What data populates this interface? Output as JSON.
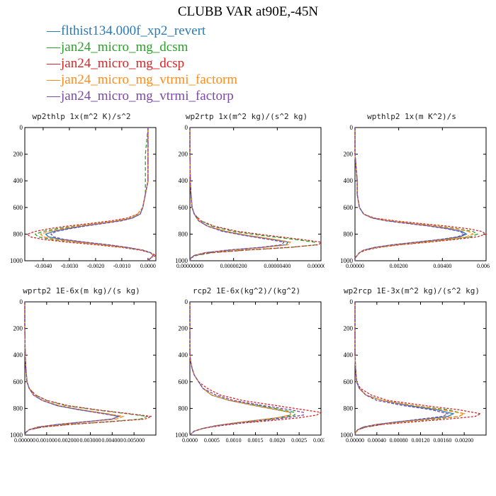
{
  "title": "CLUBB VAR at90E,-45N",
  "legend": [
    {
      "label": "flthist134.000f_xp2_revert",
      "color": "#2a7ab5"
    },
    {
      "label": "jan24_micro_mg_dcsm",
      "color": "#2ca02c"
    },
    {
      "label": "jan24_micro_mg_dcsp",
      "color": "#d62728"
    },
    {
      "label": "jan24_micro_mg_vtrmi_factorm",
      "color": "#ff8c1a"
    },
    {
      "label": "jan24_micro_mg_vtrmi_factorp",
      "color": "#7b4aa6"
    }
  ],
  "chart_data": [
    {
      "type": "line",
      "title": "wp2thlp   1x(m^2 K)/s^2",
      "xlim": [
        -0.0047,
        0.0003
      ],
      "xticks": [
        -0.004,
        -0.003,
        -0.002,
        -0.001,
        0.0
      ],
      "xtick_labels": [
        "-0.0040",
        "-0.0030",
        "-0.0020",
        "-0.0010",
        "0.0000"
      ],
      "ylim": [
        1000,
        0
      ],
      "yticks": [
        0,
        200,
        400,
        600,
        800,
        1000
      ],
      "y": [
        0,
        200,
        400,
        500,
        600,
        650,
        680,
        700,
        720,
        740,
        760,
        780,
        800,
        820,
        840,
        860,
        880,
        900,
        920,
        940,
        960,
        980,
        1000
      ],
      "series": [
        {
          "values": [
            0.0,
            0.0,
            0.0,
            -0.0001,
            -0.0002,
            -0.0003,
            -0.0006,
            -0.0011,
            -0.0018,
            -0.0025,
            -0.0031,
            -0.0036,
            -0.0039,
            -0.0038,
            -0.0033,
            -0.0025,
            -0.0016,
            -0.0008,
            -0.0002,
            0.0001,
            0.0002,
            0.0001,
            0.0
          ]
        },
        {
          "values": [
            0.0,
            -0.0001,
            -0.0001,
            -0.0001,
            -0.0002,
            -0.0004,
            -0.0007,
            -0.0012,
            -0.002,
            -0.0028,
            -0.0035,
            -0.004,
            -0.0043,
            -0.0042,
            -0.0037,
            -0.0028,
            -0.0018,
            -0.0009,
            -0.0002,
            0.0001,
            0.0002,
            0.0001,
            0.0
          ]
        },
        {
          "values": [
            0.0,
            0.0,
            0.0,
            -0.0001,
            -0.0002,
            -0.0004,
            -0.0008,
            -0.0014,
            -0.0022,
            -0.0031,
            -0.0038,
            -0.0043,
            -0.0046,
            -0.0045,
            -0.004,
            -0.0031,
            -0.002,
            -0.001,
            -0.0003,
            0.0001,
            0.0003,
            0.0001,
            0.0
          ]
        },
        {
          "values": [
            0.0,
            0.0,
            0.0,
            -0.0001,
            -0.0002,
            -0.0004,
            -0.0007,
            -0.0012,
            -0.0019,
            -0.0027,
            -0.0033,
            -0.0038,
            -0.0041,
            -0.004,
            -0.0035,
            -0.0027,
            -0.0017,
            -0.0009,
            -0.0002,
            0.0001,
            0.0002,
            0.0001,
            0.0
          ]
        },
        {
          "values": [
            0.0,
            0.0,
            0.0,
            -0.0001,
            -0.0002,
            -0.0003,
            -0.0006,
            -0.001,
            -0.0017,
            -0.0024,
            -0.003,
            -0.0035,
            -0.0037,
            -0.0036,
            -0.0032,
            -0.0024,
            -0.0015,
            -0.0008,
            -0.0002,
            0.0001,
            0.0002,
            0.0001,
            0.0
          ]
        }
      ]
    },
    {
      "type": "line",
      "title": "wp2rtp   1x(m^2 kg)/(s^2 kg)",
      "xlim": [
        0,
        6e-06
      ],
      "xticks": [
        0,
        2e-06,
        4e-06,
        6e-06
      ],
      "xtick_labels": [
        "0.00000000",
        "0.00000200",
        "0.00000400",
        "0.00000600"
      ],
      "ylim": [
        1000,
        0
      ],
      "yticks": [
        0,
        200,
        400,
        600,
        800,
        1000
      ],
      "y": [
        0,
        200,
        400,
        500,
        600,
        650,
        700,
        740,
        780,
        810,
        840,
        860,
        880,
        900,
        920,
        940,
        960,
        980,
        1000
      ],
      "series": [
        {
          "values": [
            0,
            0,
            2e-08,
            5e-08,
            1e-07,
            2e-07,
            4e-07,
            8e-07,
            1.6e-06,
            2.6e-06,
            3.8e-06,
            4.5e-06,
            4.4e-06,
            3.3e-06,
            1.8e-06,
            7e-07,
            2e-07,
            5e-08,
            0
          ]
        },
        {
          "values": [
            0,
            0,
            2e-08,
            5e-08,
            1e-07,
            2e-07,
            5e-07,
            1e-06,
            2e-06,
            3.3e-06,
            4.8e-06,
            5.7e-06,
            5.8e-06,
            4.6e-06,
            2.6e-06,
            1e-06,
            3e-07,
            5e-08,
            0
          ]
        },
        {
          "values": [
            0,
            0,
            2e-08,
            5e-08,
            1e-07,
            2e-07,
            5e-07,
            1.1e-06,
            2.2e-06,
            3.6e-06,
            5.1e-06,
            6e-06,
            5.9e-06,
            4.5e-06,
            2.5e-06,
            9e-07,
            2e-07,
            5e-08,
            0
          ]
        },
        {
          "values": [
            0,
            0,
            2e-08,
            5e-08,
            1e-07,
            2e-07,
            4e-07,
            8e-07,
            1.7e-06,
            2.7e-06,
            3.9e-06,
            4.6e-06,
            4.5e-06,
            3.4e-06,
            1.9e-06,
            7e-07,
            2e-07,
            5e-08,
            0
          ]
        },
        {
          "values": [
            0,
            0,
            2e-08,
            5e-08,
            1e-07,
            2e-07,
            4e-07,
            8e-07,
            1.5e-06,
            2.5e-06,
            3.6e-06,
            4.3e-06,
            4.2e-06,
            3.2e-06,
            1.7e-06,
            7e-07,
            2e-07,
            5e-08,
            0
          ]
        }
      ]
    },
    {
      "type": "line",
      "title": "wpthlp2   1x(m K^2)/s",
      "xlim": [
        0,
        0.006
      ],
      "xticks": [
        0,
        0.002,
        0.004,
        0.006
      ],
      "xtick_labels": [
        "0.00000",
        "0.00200",
        "0.00400",
        "0.00600"
      ],
      "ylim": [
        1000,
        0
      ],
      "yticks": [
        0,
        200,
        400,
        600,
        800,
        1000
      ],
      "y": [
        0,
        200,
        400,
        500,
        600,
        650,
        680,
        700,
        720,
        740,
        760,
        780,
        800,
        820,
        840,
        860,
        880,
        900,
        920,
        940,
        960,
        980,
        1000
      ],
      "series": [
        {
          "values": [
            0.0,
            0.0,
            0.0001,
            0.0001,
            0.0002,
            0.0004,
            0.0008,
            0.0015,
            0.0025,
            0.0035,
            0.0043,
            0.0049,
            0.0051,
            0.0048,
            0.004,
            0.0029,
            0.0018,
            0.0009,
            0.0004,
            0.0002,
            0.0001,
            0.0,
            0.0
          ]
        },
        {
          "values": [
            0.0,
            0.0,
            0.0001,
            0.0001,
            0.0002,
            0.0004,
            0.0008,
            0.0016,
            0.0027,
            0.0038,
            0.0047,
            0.0054,
            0.0056,
            0.0053,
            0.0044,
            0.0032,
            0.002,
            0.001,
            0.0004,
            0.0002,
            0.0001,
            0.0,
            0.0
          ]
        },
        {
          "values": [
            0.0,
            0.0,
            0.0001,
            0.0001,
            0.0002,
            0.0004,
            0.0009,
            0.0018,
            0.003,
            0.0042,
            0.0052,
            0.0058,
            0.006,
            0.0056,
            0.0046,
            0.0034,
            0.0021,
            0.0011,
            0.0005,
            0.0002,
            0.0001,
            0.0,
            0.0
          ]
        },
        {
          "values": [
            0.0,
            0.0,
            0.0001,
            0.0001,
            0.0002,
            0.0004,
            0.0008,
            0.0016,
            0.0026,
            0.0037,
            0.0046,
            0.0052,
            0.0054,
            0.0051,
            0.0042,
            0.0031,
            0.0019,
            0.001,
            0.0004,
            0.0002,
            0.0001,
            0.0,
            0.0
          ]
        },
        {
          "values": [
            0.0,
            0.0,
            0.0001,
            0.0001,
            0.0002,
            0.0004,
            0.0008,
            0.0014,
            0.0024,
            0.0034,
            0.0042,
            0.0048,
            0.005,
            0.0047,
            0.0039,
            0.0028,
            0.0017,
            0.0009,
            0.0004,
            0.0002,
            0.0001,
            0.0,
            0.0
          ]
        }
      ]
    },
    {
      "type": "line",
      "title": "wprtp2   1E-6x(m kg)/(s kg)",
      "xlim": [
        0,
        0.006
      ],
      "xticks": [
        0,
        0.001,
        0.002,
        0.003,
        0.004,
        0.005
      ],
      "xtick_labels": [
        "0.000000",
        "0.001000",
        "0.002000",
        "0.003000",
        "0.004000",
        "0.005000"
      ],
      "ylim": [
        1000,
        0
      ],
      "yticks": [
        0,
        200,
        400,
        600,
        800,
        1000
      ],
      "y": [
        0,
        200,
        400,
        500,
        600,
        650,
        700,
        740,
        780,
        810,
        840,
        860,
        880,
        900,
        920,
        940,
        960,
        980,
        1000
      ],
      "series": [
        {
          "values": [
            0,
            0,
            2e-05,
            5e-05,
            0.0001,
            0.0002,
            0.0004,
            0.0008,
            0.0015,
            0.0025,
            0.0037,
            0.0043,
            0.004,
            0.0028,
            0.0015,
            0.0006,
            0.0002,
            5e-05,
            0
          ]
        },
        {
          "values": [
            0,
            0,
            2e-05,
            5e-05,
            0.0001,
            0.0002,
            0.0005,
            0.001,
            0.0019,
            0.0032,
            0.0047,
            0.0056,
            0.0053,
            0.0038,
            0.002,
            0.0008,
            0.0002,
            5e-05,
            0
          ]
        },
        {
          "values": [
            0,
            0,
            2e-05,
            5e-05,
            0.0001,
            0.0002,
            0.0005,
            0.001,
            0.002,
            0.0033,
            0.0048,
            0.0058,
            0.0055,
            0.0039,
            0.0021,
            0.0008,
            0.0002,
            5e-05,
            0
          ]
        },
        {
          "values": [
            0,
            0,
            2e-05,
            5e-05,
            0.0001,
            0.0002,
            0.0004,
            0.0008,
            0.0016,
            0.0026,
            0.0038,
            0.0045,
            0.0042,
            0.0029,
            0.0016,
            0.0006,
            0.0002,
            5e-05,
            0
          ]
        },
        {
          "values": [
            0,
            0,
            2e-05,
            5e-05,
            0.0001,
            0.0002,
            0.0004,
            0.0008,
            0.0015,
            0.0025,
            0.0036,
            0.0043,
            0.004,
            0.0028,
            0.0015,
            0.0006,
            0.0002,
            5e-05,
            0
          ]
        }
      ]
    },
    {
      "type": "line",
      "title": "rcp2   1E-6x(kg^2)/(kg^2)",
      "xlim": [
        0,
        0.003
      ],
      "xticks": [
        0,
        0.0005,
        0.001,
        0.0015,
        0.002,
        0.0025,
        0.003
      ],
      "xtick_labels": [
        "0.0000",
        "0.0005",
        "0.0010",
        "0.0015",
        "0.0020",
        "0.0025",
        "0.0030"
      ],
      "ylim": [
        1000,
        0
      ],
      "yticks": [
        0,
        200,
        400,
        600,
        800,
        1000
      ],
      "y": [
        0,
        200,
        400,
        450,
        500,
        550,
        600,
        650,
        700,
        740,
        780,
        810,
        830,
        850,
        870,
        890,
        910,
        930,
        950,
        970,
        990,
        1000
      ],
      "series": [
        {
          "values": [
            0,
            0,
            0,
            2e-05,
            5e-05,
            0.0001,
            0.0002,
            0.0003,
            0.0005,
            0.0009,
            0.0015,
            0.002,
            0.0023,
            0.0023,
            0.002,
            0.0015,
            0.001,
            0.0006,
            0.0003,
            0.0001,
            3e-05,
            0
          ]
        },
        {
          "values": [
            0,
            0,
            0,
            2e-05,
            5e-05,
            0.0001,
            0.0002,
            0.0003,
            0.0005,
            0.0009,
            0.0016,
            0.0021,
            0.0024,
            0.0024,
            0.0021,
            0.0016,
            0.001,
            0.0006,
            0.0003,
            0.0001,
            3e-05,
            0
          ]
        },
        {
          "values": [
            0,
            0,
            0,
            2e-05,
            5e-05,
            0.0001,
            0.0002,
            0.0004,
            0.0007,
            0.0012,
            0.002,
            0.0026,
            0.003,
            0.0029,
            0.0025,
            0.0019,
            0.0012,
            0.0007,
            0.0003,
            0.0001,
            3e-05,
            0
          ]
        },
        {
          "values": [
            0,
            0,
            0,
            2e-05,
            5e-05,
            0.0001,
            0.0002,
            0.0003,
            0.0005,
            0.0009,
            0.0015,
            0.002,
            0.0023,
            0.0023,
            0.002,
            0.0015,
            0.001,
            0.0006,
            0.0003,
            0.0001,
            3e-05,
            0
          ]
        },
        {
          "values": [
            0,
            0,
            0,
            2e-05,
            5e-05,
            0.0001,
            0.0002,
            0.0003,
            0.0006,
            0.001,
            0.0017,
            0.0023,
            0.0026,
            0.0026,
            0.0022,
            0.0017,
            0.0011,
            0.0006,
            0.0003,
            0.0001,
            3e-05,
            0
          ]
        }
      ]
    },
    {
      "type": "line",
      "title": "wp2rcp   1E-3x(m^2 kg)/(s^2 kg)",
      "xlim": [
        0,
        0.0024
      ],
      "xticks": [
        0,
        0.0004,
        0.0008,
        0.0012,
        0.0016,
        0.002
      ],
      "xtick_labels": [
        "0.00000",
        "0.00040",
        "0.00080",
        "0.00120",
        "0.00160",
        "0.00200"
      ],
      "ylim": [
        1000,
        0
      ],
      "yticks": [
        0,
        200,
        400,
        600,
        800,
        1000
      ],
      "y": [
        0,
        200,
        400,
        500,
        600,
        650,
        700,
        740,
        780,
        810,
        840,
        860,
        880,
        900,
        920,
        940,
        960,
        980,
        1000
      ],
      "series": [
        {
          "values": [
            0,
            0,
            0,
            1e-05,
            3e-05,
            8e-05,
            0.0002,
            0.0005,
            0.001,
            0.0015,
            0.0018,
            0.0017,
            0.0013,
            0.0008,
            0.0004,
            0.00015,
            5e-05,
            1e-05,
            0
          ]
        },
        {
          "values": [
            0,
            0,
            0,
            1e-05,
            3e-05,
            8e-05,
            0.0002,
            0.0005,
            0.0011,
            0.0017,
            0.002,
            0.0019,
            0.0015,
            0.0009,
            0.0005,
            0.0002,
            5e-05,
            1e-05,
            0
          ]
        },
        {
          "values": [
            0,
            0,
            0,
            1e-05,
            3e-05,
            0.0001,
            0.0003,
            0.0006,
            0.0013,
            0.0019,
            0.0023,
            0.0022,
            0.0017,
            0.0011,
            0.0005,
            0.0002,
            6e-05,
            1e-05,
            0
          ]
        },
        {
          "values": [
            0,
            0,
            0,
            1e-05,
            3e-05,
            8e-05,
            0.0002,
            0.0005,
            0.0011,
            0.0016,
            0.002,
            0.0019,
            0.0014,
            0.0009,
            0.0004,
            0.00015,
            5e-05,
            1e-05,
            0
          ]
        },
        {
          "values": [
            0,
            0,
            0,
            1e-05,
            3e-05,
            8e-05,
            0.0002,
            0.0004,
            0.0009,
            0.0014,
            0.0017,
            0.0016,
            0.0012,
            0.0008,
            0.0004,
            0.00015,
            5e-05,
            1e-05,
            0
          ]
        }
      ]
    }
  ]
}
